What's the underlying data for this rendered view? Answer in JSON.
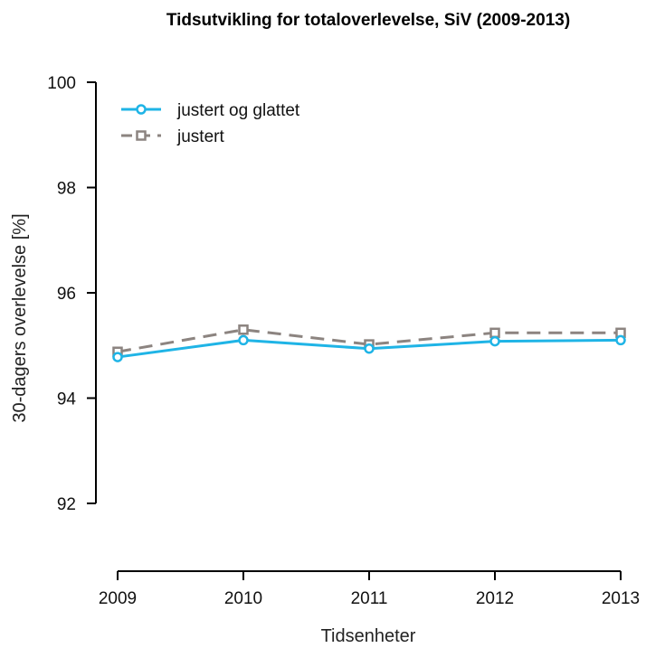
{
  "chart_data": {
    "type": "line",
    "title": "Tidsutvikling for totaloverlevelse, SiV (2009-2013)",
    "xlabel": "Tidsenheter",
    "ylabel": "30-dagers overlevelse [%]",
    "x": [
      "2009",
      "2010",
      "2011",
      "2012",
      "2013"
    ],
    "ylim": [
      91,
      100
    ],
    "yticks": [
      92,
      94,
      96,
      98,
      100
    ],
    "grid": false,
    "legend_position": "top-left",
    "series": [
      {
        "name": "justert og glattet",
        "values": [
          94.78,
          95.1,
          94.94,
          95.08,
          95.1
        ],
        "color": "#1fb4e6",
        "style": "solid",
        "marker": "circle"
      },
      {
        "name": "justert",
        "values": [
          94.88,
          95.3,
          95.02,
          95.24,
          95.24
        ],
        "color": "#8c8480",
        "style": "dashed",
        "marker": "square"
      }
    ]
  }
}
